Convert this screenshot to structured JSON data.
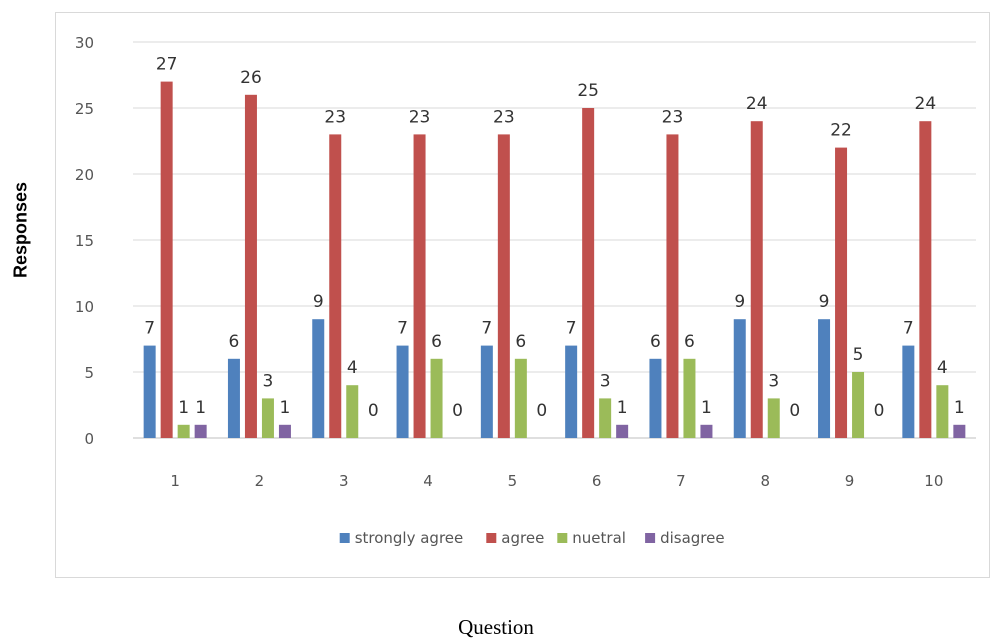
{
  "chart_data": {
    "type": "bar",
    "categories": [
      "1",
      "2",
      "3",
      "4",
      "5",
      "6",
      "7",
      "8",
      "9",
      "10"
    ],
    "series": [
      {
        "name": "strongly agree",
        "color": "#4F81BD",
        "values": [
          7,
          6,
          9,
          7,
          7,
          7,
          6,
          9,
          9,
          7
        ]
      },
      {
        "name": "agree",
        "color": "#C0504D",
        "values": [
          27,
          26,
          23,
          23,
          23,
          25,
          23,
          24,
          22,
          24
        ]
      },
      {
        "name": "nuetral",
        "color": "#9BBB59",
        "values": [
          1,
          3,
          4,
          6,
          6,
          3,
          6,
          3,
          5,
          4
        ]
      },
      {
        "name": "disagree",
        "color": "#8064A2",
        "values": [
          1,
          1,
          0,
          0,
          0,
          1,
          1,
          0,
          0,
          1
        ]
      }
    ],
    "xlabel": "Question",
    "ylabel": "Responses",
    "ylim": [
      0,
      30
    ],
    "yticks": [
      0,
      5,
      10,
      15,
      20,
      25,
      30
    ],
    "grid": true,
    "legend_position": "bottom"
  }
}
